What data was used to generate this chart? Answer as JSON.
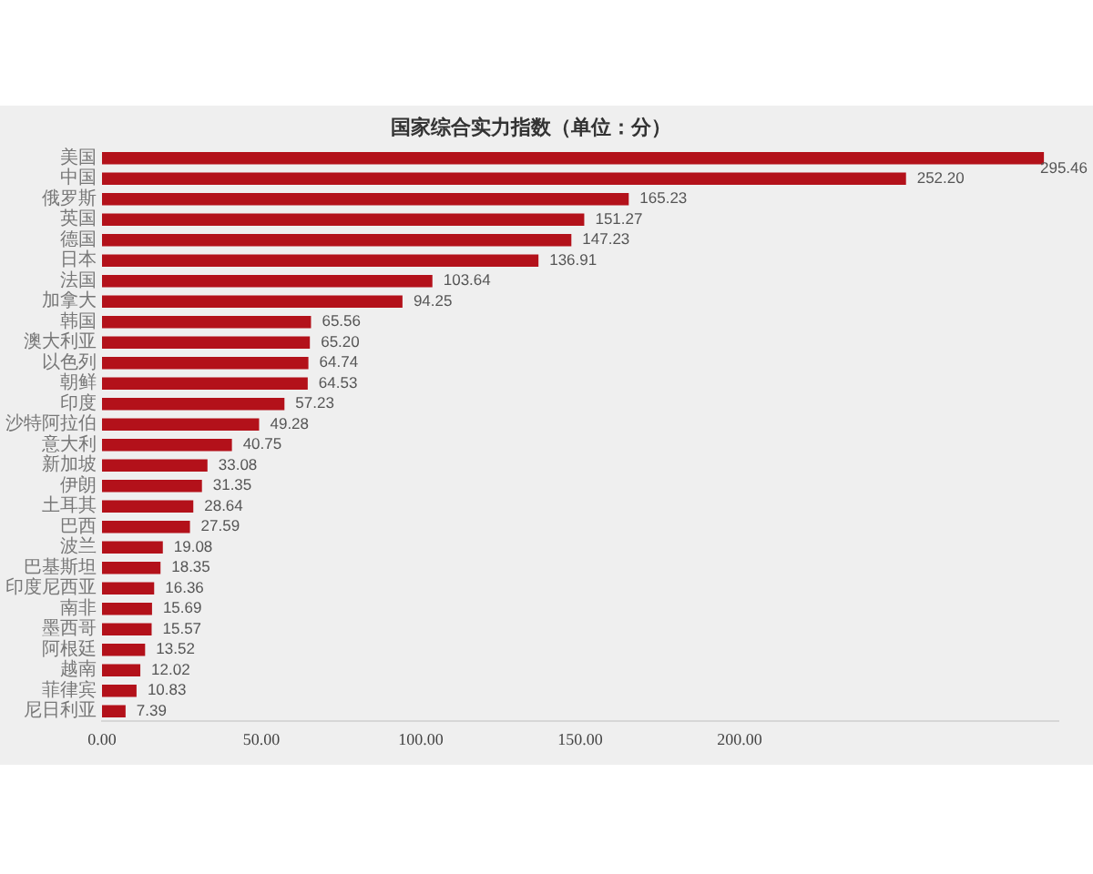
{
  "chart_data": {
    "type": "bar",
    "orientation": "horizontal",
    "title": "国家综合实力指数（单位：分）",
    "categories": [
      "美国",
      "中国",
      "俄罗斯",
      "英国",
      "德国",
      "日本",
      "法国",
      "加拿大",
      "韩国",
      "澳大利亚",
      "以色列",
      "朝鲜",
      "印度",
      "沙特阿拉伯",
      "意大利",
      "新加坡",
      "伊朗",
      "土耳其",
      "巴西",
      "波兰",
      "巴基斯坦",
      "印度尼西亚",
      "南非",
      "墨西哥",
      "阿根廷",
      "越南",
      "菲律宾",
      "尼日利亚"
    ],
    "values": [
      295.46,
      252.2,
      165.23,
      151.27,
      147.23,
      136.91,
      103.64,
      94.25,
      65.56,
      65.2,
      64.74,
      64.53,
      57.23,
      49.28,
      40.75,
      33.08,
      31.35,
      28.64,
      27.59,
      19.08,
      18.35,
      16.36,
      15.69,
      15.57,
      13.52,
      12.02,
      10.83,
      7.39
    ],
    "value_labels": [
      "295.46",
      "252.20",
      "165.23",
      "151.27",
      "147.23",
      "136.91",
      "103.64",
      "94.25",
      "65.56",
      "65.20",
      "64.74",
      "64.53",
      "57.23",
      "49.28",
      "40.75",
      "33.08",
      "31.35",
      "28.64",
      "27.59",
      "19.08",
      "18.35",
      "16.36",
      "15.69",
      "15.57",
      "13.52",
      "12.02",
      "10.83",
      "7.39"
    ],
    "color": "#b3111a",
    "xlim": [
      0,
      300
    ],
    "xticks": [
      {
        "value": 0,
        "label": "0.00"
      },
      {
        "value": 50,
        "label": "50.00"
      },
      {
        "value": 100,
        "label": "100.00"
      },
      {
        "value": 150,
        "label": "150.00"
      },
      {
        "value": 200,
        "label": "200.00"
      }
    ]
  }
}
